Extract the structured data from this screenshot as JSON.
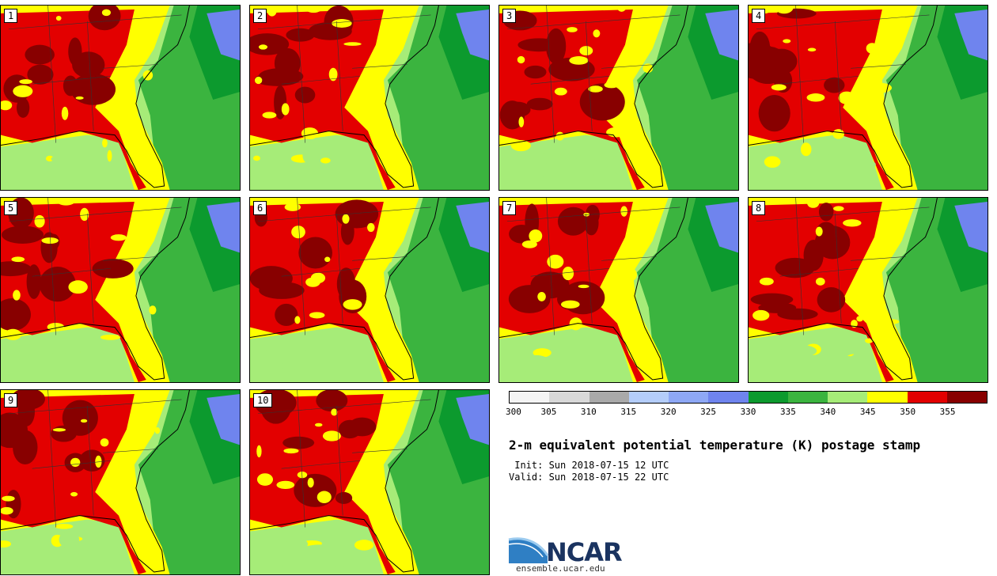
{
  "panels": [
    "1",
    "2",
    "3",
    "4",
    "5",
    "6",
    "7",
    "8",
    "9",
    "10"
  ],
  "colorbar": {
    "ticks": [
      "300",
      "305",
      "310",
      "315",
      "320",
      "325",
      "330",
      "335",
      "340",
      "345",
      "350",
      "355"
    ],
    "colors": [
      "#f4f4f4",
      "#d8d8d8",
      "#a9a9a9",
      "#b4cdfa",
      "#8ea8f5",
      "#6f84ee",
      "#0c9a2e",
      "#3bb43f",
      "#a6ec78",
      "#ffff00",
      "#e30000",
      "#880000"
    ]
  },
  "title": "2-m equivalent potential temperature (K) postage stamp",
  "init_line": " Init: Sun 2018-07-15 12 UTC",
  "valid_line": "Valid: Sun 2018-07-15 22 UTC",
  "logo": {
    "name": "NCAR",
    "url": "ensemble.ucar.edu"
  }
}
